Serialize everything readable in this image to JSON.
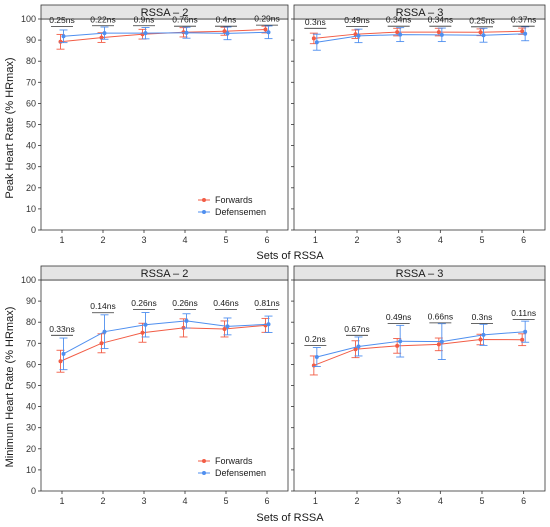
{
  "colors": {
    "forwards": "#F25C45",
    "defensemen": "#4F8FEF",
    "strip_fill": "#e5e5e5",
    "panel_border": "#333333"
  },
  "chart_data": [
    {
      "type": "line",
      "panel_title": "RSSA – 2",
      "xlabel": "Sets of RSSA",
      "ylabel": "Peak Heart Rate (% HRmax)",
      "categories": [
        "1",
        "2",
        "3",
        "4",
        "5",
        "6"
      ],
      "ylim": [
        0,
        100
      ],
      "yticks": [
        0,
        10,
        20,
        30,
        40,
        50,
        60,
        70,
        80,
        90,
        100
      ],
      "series": [
        {
          "name": "Forwards",
          "values": [
            89.2,
            91.2,
            92.8,
            93.7,
            94.2,
            95.0
          ],
          "error": [
            3.5,
            2.3,
            2.3,
            2.2,
            1.9,
            1.6
          ]
        },
        {
          "name": "Defensemen",
          "values": [
            91.8,
            93.3,
            93.3,
            93.5,
            93.2,
            93.7
          ],
          "error": [
            3.0,
            2.9,
            2.7,
            2.6,
            3.0,
            3.0
          ]
        }
      ],
      "annotations": [
        "0.25ns",
        "0.22ns",
        "0.9ns",
        "0.76ns",
        "0.4ns",
        "0.29ns"
      ],
      "annotation_y": [
        97.2,
        97.5,
        97.5,
        97.3,
        97.3,
        97.8
      ],
      "legend": {
        "show": true,
        "position": "bottom-right"
      }
    },
    {
      "type": "line",
      "panel_title": "RSSA – 3",
      "xlabel": "Sets of RSSA",
      "ylabel": "Peak Heart Rate (% HRmax)",
      "categories": [
        "1",
        "2",
        "3",
        "4",
        "5",
        "6"
      ],
      "ylim": [
        0,
        100
      ],
      "yticks": [
        0,
        10,
        20,
        30,
        40,
        50,
        60,
        70,
        80,
        90,
        100
      ],
      "series": [
        {
          "name": "Forwards",
          "values": [
            90.8,
            92.8,
            93.8,
            93.8,
            93.7,
            94.2
          ],
          "error": [
            2.5,
            2.0,
            1.8,
            1.8,
            1.6,
            1.5
          ]
        },
        {
          "name": "Defensemen",
          "values": [
            89.0,
            92.0,
            92.6,
            92.5,
            92.3,
            93.0
          ],
          "error": [
            3.8,
            3.2,
            3.3,
            3.2,
            3.3,
            3.3
          ]
        }
      ],
      "annotations": [
        "0.3ns",
        "0.49ns",
        "0.34ns",
        "0.34ns",
        "0.25ns",
        "0.37ns"
      ],
      "annotation_y": [
        96.3,
        97.2,
        97.3,
        97.3,
        97.0,
        97.3
      ],
      "legend": {
        "show": false
      }
    },
    {
      "type": "line",
      "panel_title": "RSSA – 2",
      "xlabel": "Sets of RSSA",
      "ylabel": "Minimum Heart Rate (% HRmax)",
      "categories": [
        "1",
        "2",
        "3",
        "4",
        "5",
        "6"
      ],
      "ylim": [
        0,
        100
      ],
      "yticks": [
        0,
        10,
        20,
        30,
        40,
        50,
        60,
        70,
        80,
        90,
        100
      ],
      "series": [
        {
          "name": "Forwards",
          "values": [
            61.5,
            70.0,
            75.0,
            77.3,
            76.8,
            78.5
          ],
          "error": [
            5.2,
            4.5,
            4.5,
            4.3,
            3.8,
            3.3
          ]
        },
        {
          "name": "Defensemen",
          "values": [
            65.0,
            75.5,
            78.8,
            80.6,
            78.0,
            79.0
          ],
          "error": [
            7.5,
            8.0,
            5.8,
            3.4,
            4.0,
            3.9
          ]
        }
      ],
      "annotations": [
        "0.33ns",
        "0.14ns",
        "0.26ns",
        "0.26ns",
        "0.46ns",
        "0.81ns"
      ],
      "annotation_y": [
        74.5,
        85.2,
        86.8,
        86.8,
        86.8,
        86.8
      ],
      "legend": {
        "show": true,
        "position": "bottom-right"
      }
    },
    {
      "type": "line",
      "panel_title": "RSSA – 3",
      "xlabel": "Sets of RSSA",
      "ylabel": "Minimum Heart Rate (% HRmax)",
      "categories": [
        "1",
        "2",
        "3",
        "4",
        "5",
        "6"
      ],
      "ylim": [
        0,
        100
      ],
      "yticks": [
        0,
        10,
        20,
        30,
        40,
        50,
        60,
        70,
        80,
        90,
        100
      ],
      "series": [
        {
          "name": "Forwards",
          "values": [
            59.5,
            67.2,
            68.8,
            69.5,
            71.8,
            71.7
          ],
          "error": [
            4.5,
            4.0,
            3.5,
            3.0,
            2.5,
            2.8
          ]
        },
        {
          "name": "Defensemen",
          "values": [
            63.5,
            68.5,
            71.0,
            70.8,
            74.0,
            75.5
          ],
          "error": [
            4.5,
            4.5,
            7.5,
            8.5,
            5.0,
            5.0
          ]
        }
      ],
      "annotations": [
        "0.2ns",
        "0.67ns",
        "0.49ns",
        "0.66ns",
        "0.3ns",
        "0.11ns"
      ],
      "annotation_y": [
        69.6,
        74.5,
        80.1,
        80.4,
        80.1,
        82.0
      ],
      "legend": {
        "show": false
      }
    }
  ]
}
